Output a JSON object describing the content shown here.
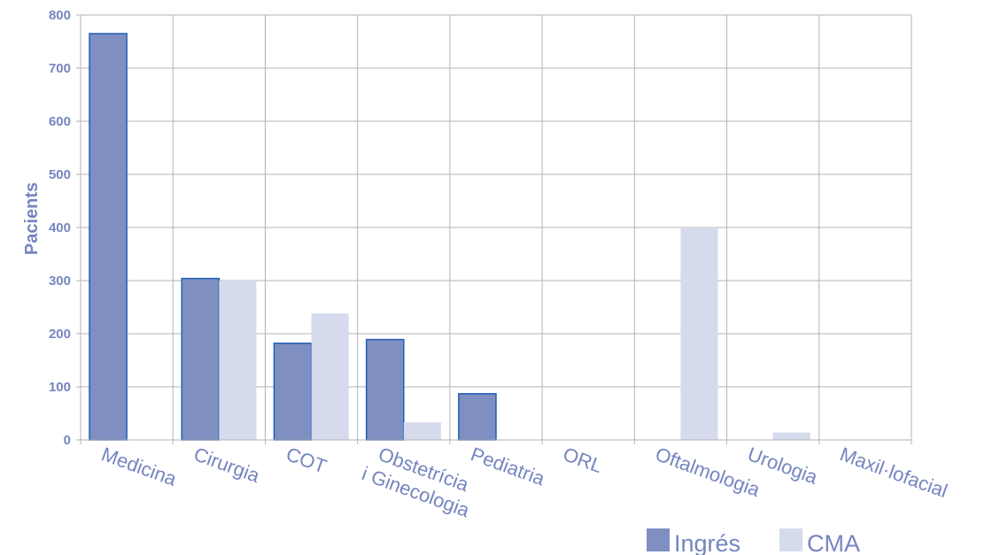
{
  "chart_data": {
    "type": "bar",
    "title": "",
    "xlabel": "",
    "ylabel": "Pacients",
    "ylim": [
      0,
      800
    ],
    "yticks": [
      0,
      100,
      200,
      300,
      400,
      500,
      600,
      700,
      800
    ],
    "categories": [
      "Medicina",
      "Cirurgia",
      "COT",
      "Obstetrícia\ni Ginecologia",
      "Pediatria",
      "ORL",
      "Oftalmologia",
      "Urologia",
      "Maxil·lofacial"
    ],
    "series": [
      {
        "name": "Ingrés",
        "color": "#7f8fc1",
        "stroke": "#1f5fb5",
        "values": [
          765,
          304,
          182,
          189,
          87,
          0,
          0,
          0,
          0
        ]
      },
      {
        "name": "CMA",
        "color": "#d5dbec",
        "stroke": "#d5dbec",
        "values": [
          0,
          300,
          238,
          33,
          0,
          0,
          400,
          14,
          0
        ]
      }
    ],
    "grid": true,
    "legend_position": "bottom-right",
    "text_color": "#7585c0",
    "grid_color": "#b3b3b3"
  }
}
